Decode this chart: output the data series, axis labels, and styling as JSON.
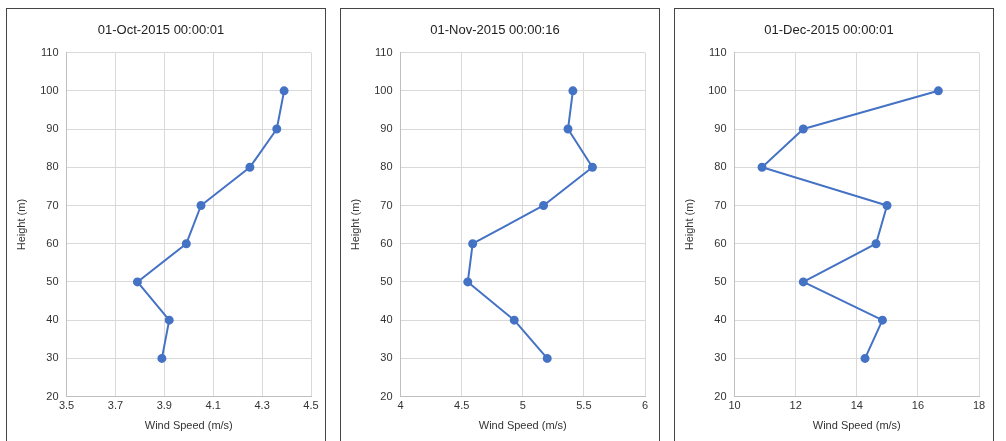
{
  "chart_data": [
    {
      "type": "line",
      "title": "01-Oct-2015 00:00:01",
      "xlabel": "Wind Speed (m/s)",
      "ylabel": "Height (m)",
      "xlim": [
        3.5,
        4.5
      ],
      "xticks": [
        3.5,
        3.7,
        3.9,
        4.1,
        4.3,
        4.5
      ],
      "ylim": [
        20,
        110
      ],
      "yticks": [
        20,
        30,
        40,
        50,
        60,
        70,
        80,
        90,
        100,
        110
      ],
      "grid": true,
      "marker": "circle",
      "line_style": "solid",
      "series": [
        {
          "color": "#4472c4",
          "x": [
            3.89,
            3.92,
            3.79,
            3.99,
            4.05,
            4.25,
            4.36,
            4.39
          ],
          "values": [
            30,
            40,
            50,
            60,
            70,
            80,
            90,
            100
          ]
        }
      ]
    },
    {
      "type": "line",
      "title": "01-Nov-2015 00:00:16",
      "xlabel": "Wind Speed (m/s)",
      "ylabel": "Height (m)",
      "xlim": [
        4,
        6
      ],
      "xticks": [
        4,
        4.5,
        5,
        5.5,
        6
      ],
      "ylim": [
        20,
        110
      ],
      "yticks": [
        20,
        30,
        40,
        50,
        60,
        70,
        80,
        90,
        100,
        110
      ],
      "grid": true,
      "marker": "circle",
      "line_style": "solid",
      "series": [
        {
          "color": "#4472c4",
          "x": [
            5.2,
            4.93,
            4.55,
            4.59,
            5.17,
            5.57,
            5.37,
            5.41
          ],
          "values": [
            30,
            40,
            50,
            60,
            70,
            80,
            90,
            100
          ]
        }
      ]
    },
    {
      "type": "line",
      "title": "01-Dec-2015 00:00:01",
      "xlabel": "Wind Speed (m/s)",
      "ylabel": "Height (m)",
      "xlim": [
        10,
        18
      ],
      "xticks": [
        10,
        12,
        14,
        16,
        18
      ],
      "ylim": [
        20,
        110
      ],
      "yticks": [
        20,
        30,
        40,
        50,
        60,
        70,
        80,
        90,
        100,
        110
      ],
      "grid": true,
      "marker": "circle",
      "line_style": "solid",
      "series": [
        {
          "color": "#4472c4",
          "x": [
            14.27,
            14.84,
            12.25,
            14.63,
            14.99,
            10.9,
            12.25,
            16.67
          ],
          "values": [
            30,
            40,
            50,
            60,
            70,
            80,
            90,
            100
          ]
        }
      ]
    }
  ]
}
